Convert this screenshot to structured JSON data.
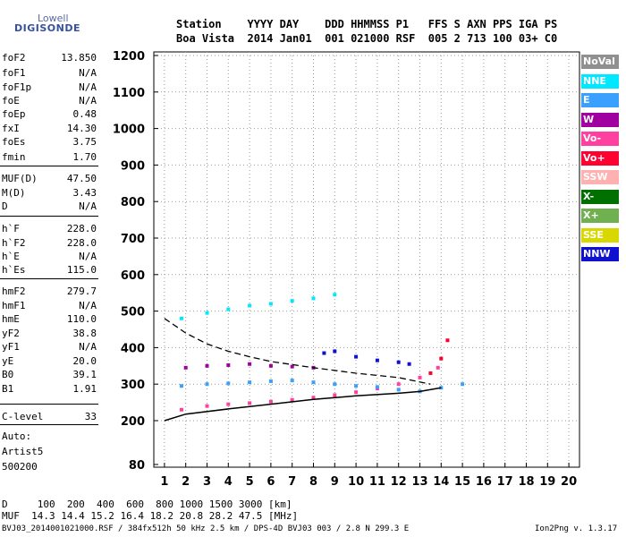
{
  "logo": {
    "line1": "Lowell",
    "line2": "DIGISONDE"
  },
  "header": {
    "row1": "Station    YYYY DAY    DDD HHMMSS P1   FFS S AXN PPS IGA PS",
    "row2": "Boa Vista  2014 Jan01  001 021000 RSF  005 2 713 100 03+ C0"
  },
  "params": [
    {
      "k": "foF2",
      "v": "13.850"
    },
    {
      "k": "foF1",
      "v": "N/A"
    },
    {
      "k": "foF1p",
      "v": "N/A"
    },
    {
      "k": "foE",
      "v": "N/A"
    },
    {
      "k": "foEp",
      "v": "0.48"
    },
    {
      "k": "fxI",
      "v": "14.30"
    },
    {
      "k": "foEs",
      "v": "3.75"
    },
    {
      "k": "fmin",
      "v": "1.70"
    },
    {
      "k": "MUF(D)",
      "v": "47.50"
    },
    {
      "k": "M(D)",
      "v": "3.43"
    },
    {
      "k": "D",
      "v": "N/A"
    },
    {
      "k": "h`F",
      "v": "228.0"
    },
    {
      "k": "h`F2",
      "v": "228.0"
    },
    {
      "k": "h`E",
      "v": "N/A"
    },
    {
      "k": "h`Es",
      "v": "115.0"
    },
    {
      "k": "hmF2",
      "v": "279.7"
    },
    {
      "k": "hmF1",
      "v": "N/A"
    },
    {
      "k": "hmE",
      "v": "110.0"
    },
    {
      "k": "yF2",
      "v": "38.8"
    },
    {
      "k": "yF1",
      "v": "N/A"
    },
    {
      "k": "yE",
      "v": "20.0"
    },
    {
      "k": "B0",
      "v": "39.1"
    },
    {
      "k": "B1",
      "v": "1.91"
    },
    {
      "k": "C-level",
      "v": "33"
    }
  ],
  "auto": {
    "l1": "Auto:",
    "l2": "Artist5",
    "l3": "500200"
  },
  "footer": {
    "d_row": "D     100  200  400  600  800 1000 1500 3000 [km]",
    "muf_row": "MUF  14.3 14.4 15.2 16.4 18.2 20.8 28.2 47.5 [MHz]",
    "file_row": "BVJ03_2014001021000.RSF / 384fx512h 50 kHz 2.5 km / DPS-4D BVJ03 003 / 2.8 N 299.3 E",
    "version": "Ion2Png v. 1.3.17"
  },
  "legend": [
    {
      "name": "NoVal",
      "color": "#909090"
    },
    {
      "name": "NNE",
      "color": "#00e8ff"
    },
    {
      "name": "E",
      "color": "#3aa0ff"
    },
    {
      "name": "W",
      "color": "#a000a0"
    },
    {
      "name": "Vo-",
      "color": "#ff40a0"
    },
    {
      "name": "Vo+",
      "color": "#ff0030"
    },
    {
      "name": "SSW",
      "color": "#ffb0b0"
    },
    {
      "name": "X-",
      "color": "#007000"
    },
    {
      "name": "X+",
      "color": "#70b050"
    },
    {
      "name": "SSE",
      "color": "#d8d800"
    },
    {
      "name": "NNW",
      "color": "#1010d0"
    }
  ],
  "chart_data": {
    "type": "scatter",
    "title": "",
    "xlabel": "",
    "ylabel": "",
    "xlim": [
      0.5,
      20.5
    ],
    "ylim": [
      80,
      1200
    ],
    "xticks": [
      1,
      2,
      3,
      4,
      5,
      6,
      7,
      8,
      9,
      10,
      11,
      12,
      13,
      14,
      15,
      16,
      17,
      18,
      19,
      20
    ],
    "yticks": [
      80,
      200,
      300,
      400,
      500,
      600,
      700,
      800,
      900,
      1000,
      1100,
      1200
    ],
    "series": [
      {
        "name": "Vo-",
        "color": "#ff40a0",
        "x": [
          1.8,
          3,
          4,
          5,
          6,
          7,
          8,
          9,
          10,
          11,
          12,
          13,
          13.85
        ],
        "y": [
          230,
          240,
          245,
          248,
          252,
          257,
          263,
          270,
          278,
          288,
          300,
          318,
          345
        ]
      },
      {
        "name": "E",
        "color": "#3aa0ff",
        "x": [
          1.8,
          3,
          4,
          5,
          6,
          7,
          8,
          9,
          10,
          11,
          12,
          13,
          14,
          15
        ],
        "y": [
          295,
          300,
          302,
          305,
          308,
          310,
          305,
          300,
          295,
          292,
          285,
          280,
          290,
          300
        ]
      },
      {
        "name": "NNE",
        "color": "#00e8ff",
        "x": [
          1.8,
          3,
          4,
          5,
          6,
          7,
          8,
          9
        ],
        "y": [
          480,
          495,
          505,
          515,
          520,
          528,
          535,
          545
        ]
      },
      {
        "name": "NNW",
        "color": "#1010d0",
        "x": [
          8.5,
          9,
          10,
          11,
          12,
          12.5
        ],
        "y": [
          385,
          390,
          375,
          365,
          360,
          355
        ]
      },
      {
        "name": "Vo+",
        "color": "#ff0030",
        "x": [
          13.5,
          14,
          14.3
        ],
        "y": [
          330,
          370,
          420
        ]
      },
      {
        "name": "W",
        "color": "#a000a0",
        "x": [
          2,
          3,
          4,
          5,
          6,
          7,
          8
        ],
        "y": [
          345,
          350,
          352,
          355,
          350,
          348,
          345
        ]
      }
    ],
    "profile_solid": {
      "x": [
        1,
        2,
        4,
        6,
        8,
        10,
        12,
        13,
        14
      ],
      "y": [
        200,
        218,
        232,
        245,
        258,
        268,
        275,
        280,
        290
      ]
    },
    "profile_dashed": {
      "x": [
        1,
        2,
        3,
        4,
        5,
        6,
        8,
        10,
        12,
        13.5
      ],
      "y": [
        480,
        440,
        410,
        390,
        375,
        362,
        345,
        330,
        318,
        300
      ]
    }
  }
}
